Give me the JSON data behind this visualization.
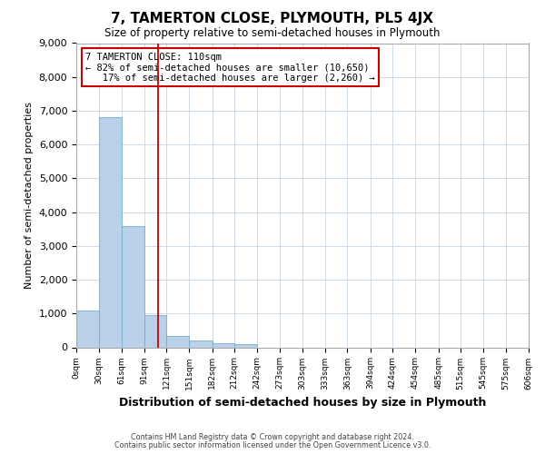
{
  "title": "7, TAMERTON CLOSE, PLYMOUTH, PL5 4JX",
  "subtitle": "Size of property relative to semi-detached houses in Plymouth",
  "xlabel": "Distribution of semi-detached houses by size in Plymouth",
  "ylabel": "Number of semi-detached properties",
  "bin_labels": [
    "0sqm",
    "30sqm",
    "61sqm",
    "91sqm",
    "121sqm",
    "151sqm",
    "182sqm",
    "212sqm",
    "242sqm",
    "273sqm",
    "303sqm",
    "333sqm",
    "363sqm",
    "394sqm",
    "424sqm",
    "454sqm",
    "485sqm",
    "515sqm",
    "545sqm",
    "575sqm",
    "606sqm"
  ],
  "bin_edges": [
    0,
    30,
    61,
    91,
    121,
    151,
    182,
    212,
    242,
    273,
    303,
    333,
    363,
    394,
    424,
    454,
    485,
    515,
    545,
    575,
    606
  ],
  "bar_values": [
    1100,
    6800,
    3580,
    960,
    340,
    200,
    120,
    95,
    0,
    0,
    0,
    0,
    0,
    0,
    0,
    0,
    0,
    0,
    0,
    0
  ],
  "bar_color": "#b8d0e8",
  "bar_edgecolor": "#7aabcf",
  "property_size": 110,
  "vline_color": "#cc0000",
  "annotation_line1": "7 TAMERTON CLOSE: 110sqm",
  "annotation_line2": "← 82% of semi-detached houses are smaller (10,650)",
  "annotation_line3": "   17% of semi-detached houses are larger (2,260) →",
  "annotation_box_edgecolor": "#cc0000",
  "annotation_box_facecolor": "#ffffff",
  "ylim": [
    0,
    9000
  ],
  "yticks": [
    0,
    1000,
    2000,
    3000,
    4000,
    5000,
    6000,
    7000,
    8000,
    9000
  ],
  "footer_line1": "Contains HM Land Registry data © Crown copyright and database right 2024.",
  "footer_line2": "Contains public sector information licensed under the Open Government Licence v3.0.",
  "background_color": "#ffffff",
  "grid_color": "#c8d4e4"
}
